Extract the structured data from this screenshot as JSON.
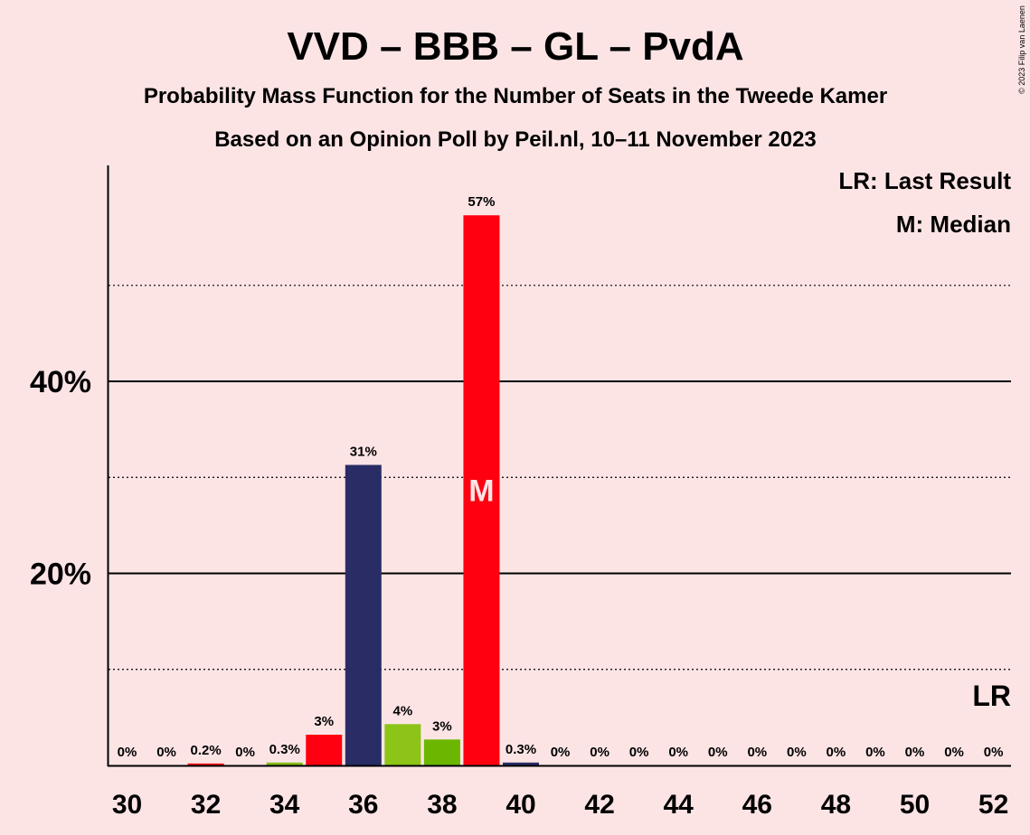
{
  "chart_data": {
    "type": "bar",
    "title": "VVD – BBB – GL – PvdA",
    "subtitle_1": "Probability Mass Function for the Number of Seats in the Tweede Kamer",
    "subtitle_2": "Based on an Opinion Poll by Peil.nl, 10–11 November 2023",
    "copyright": "© 2023 Filip van Laenen",
    "legend": {
      "placement": "top-right",
      "entries": [
        "LR: Last Result",
        "M: Median"
      ]
    },
    "x": [
      30,
      31,
      32,
      33,
      34,
      35,
      36,
      37,
      38,
      39,
      40,
      41,
      42,
      43,
      44,
      45,
      46,
      47,
      48,
      49,
      50,
      51,
      52
    ],
    "values": [
      0,
      0,
      0.2,
      0,
      0.3,
      3.2,
      31.3,
      4.3,
      2.7,
      57.3,
      0.3,
      0,
      0,
      0,
      0,
      0,
      0,
      0,
      0,
      0,
      0,
      0,
      0
    ],
    "value_labels": [
      "0%",
      "0%",
      "0.2%",
      "0%",
      "0.3%",
      "3%",
      "31%",
      "4%",
      "3%",
      "57%",
      "0.3%",
      "0%",
      "0%",
      "0%",
      "0%",
      "0%",
      "0%",
      "0%",
      "0%",
      "0%",
      "0%",
      "0%",
      "0%"
    ],
    "bar_colors": [
      "#ff0010",
      "#ff0010",
      "#ff0010",
      "#ff0010",
      "#82bc14",
      "#ff0010",
      "#2a2c66",
      "#8cc418",
      "#6cb600",
      "#ff0010",
      "#2a2c66",
      "#ff0010",
      "#ff0010",
      "#ff0010",
      "#ff0010",
      "#ff0010",
      "#ff0010",
      "#ff0010",
      "#ff0010",
      "#ff0010",
      "#ff0010",
      "#ff0010",
      "#ff0010"
    ],
    "xticks": [
      30,
      32,
      34,
      36,
      38,
      40,
      42,
      44,
      46,
      48,
      50,
      52
    ],
    "yticks": [
      {
        "value": 20,
        "label": "20%"
      },
      {
        "value": 40,
        "label": "40%"
      }
    ],
    "minor_gridlines": [
      10,
      30,
      50
    ],
    "ylim": [
      0,
      62.5
    ],
    "grid": true,
    "median": {
      "seats": 39,
      "label": "M"
    },
    "last_result": {
      "seats": 52,
      "label": "LR"
    }
  }
}
